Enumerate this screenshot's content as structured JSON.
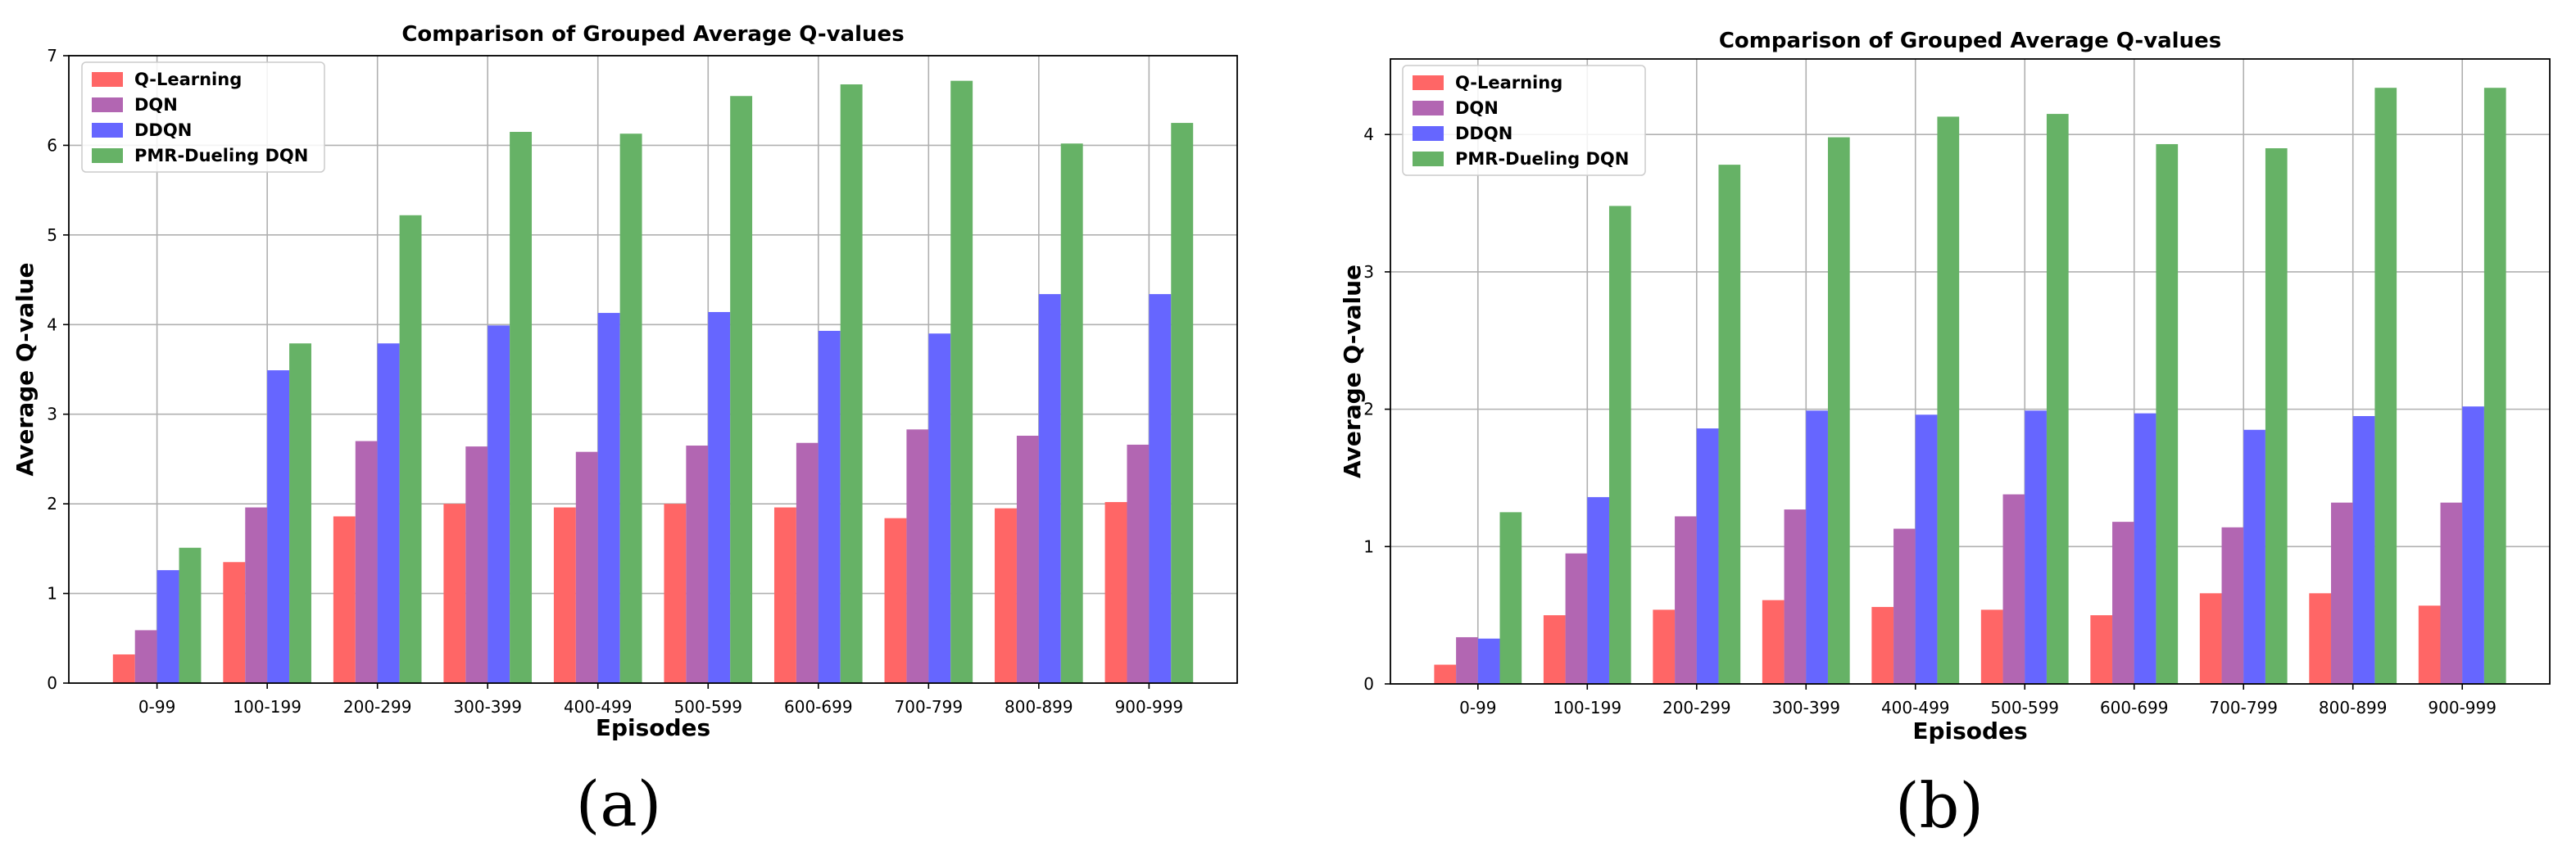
{
  "chart_data": [
    {
      "type": "bar",
      "panel_label": "(a)",
      "title": "Comparison of Grouped Average Q-values",
      "xlabel": "Episodes",
      "ylabel": "Average Q-value",
      "ylim": [
        0,
        7
      ],
      "yticks": [
        0,
        1,
        2,
        3,
        4,
        5,
        6,
        7
      ],
      "grid": true,
      "legend_position": "top-left",
      "categories": [
        "0-99",
        "100-199",
        "200-299",
        "300-399",
        "400-499",
        "500-599",
        "600-699",
        "700-799",
        "800-899",
        "900-999"
      ],
      "series": [
        {
          "name": "Q-Learning",
          "color": "#ff6666",
          "values": [
            0.32,
            1.35,
            1.86,
            2.0,
            1.96,
            2.0,
            1.96,
            1.84,
            1.95,
            2.02
          ]
        },
        {
          "name": "DQN",
          "color": "#b266b2",
          "values": [
            0.59,
            1.96,
            2.7,
            2.64,
            2.58,
            2.65,
            2.68,
            2.83,
            2.76,
            2.66
          ]
        },
        {
          "name": "DDQN",
          "color": "#6666ff",
          "values": [
            1.26,
            3.49,
            3.79,
            3.99,
            4.13,
            4.14,
            3.93,
            3.9,
            4.34,
            4.34
          ]
        },
        {
          "name": "PMR-Dueling DQN",
          "color": "#66b266",
          "values": [
            1.51,
            3.79,
            5.22,
            6.15,
            6.13,
            6.55,
            6.68,
            6.72,
            6.02,
            6.25
          ]
        }
      ]
    },
    {
      "type": "bar",
      "panel_label": "(b)",
      "title": "Comparison of Grouped Average Q-values",
      "xlabel": "Episodes",
      "ylabel": "Average Q-value",
      "ylim": [
        0,
        4.55
      ],
      "yticks": [
        0,
        1,
        2,
        3,
        4
      ],
      "grid": true,
      "legend_position": "top-left",
      "categories": [
        "0-99",
        "100-199",
        "200-299",
        "300-399",
        "400-499",
        "500-599",
        "600-699",
        "700-799",
        "800-899",
        "900-999"
      ],
      "series": [
        {
          "name": "Q-Learning",
          "color": "#ff6666",
          "values": [
            0.14,
            0.5,
            0.54,
            0.61,
            0.56,
            0.54,
            0.5,
            0.66,
            0.66,
            0.57
          ]
        },
        {
          "name": "DQN",
          "color": "#b266b2",
          "values": [
            0.34,
            0.95,
            1.22,
            1.27,
            1.13,
            1.38,
            1.18,
            1.14,
            1.32,
            1.32
          ]
        },
        {
          "name": "DDQN",
          "color": "#6666ff",
          "values": [
            0.33,
            1.36,
            1.86,
            1.99,
            1.96,
            1.99,
            1.97,
            1.85,
            1.95,
            2.02
          ]
        },
        {
          "name": "PMR-Dueling DQN",
          "color": "#66b266",
          "values": [
            1.25,
            3.48,
            3.78,
            3.98,
            4.13,
            4.15,
            3.93,
            3.9,
            4.34,
            4.34
          ]
        }
      ]
    }
  ]
}
